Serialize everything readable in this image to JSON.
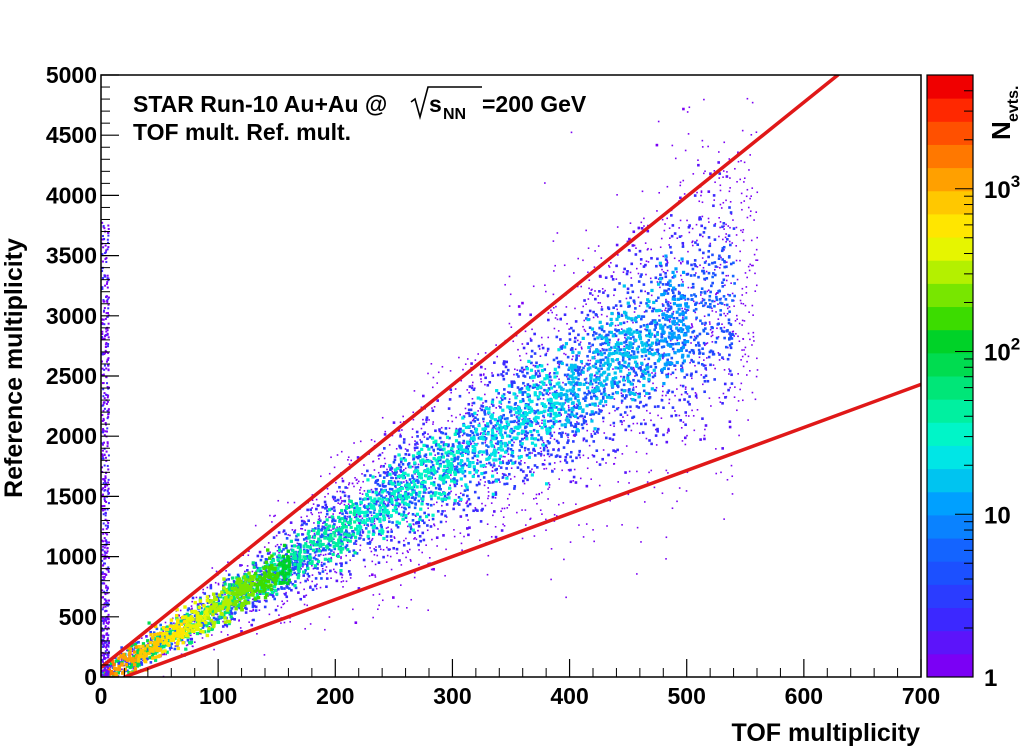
{
  "chart_data": {
    "type": "heatmap",
    "title_line1_prefix": "STAR Run-10 Au+Au @",
    "title_line1_s": "s",
    "title_line1_sub": "NN",
    "title_line1_suffix": "=200 GeV",
    "title_line2": "TOF mult. Ref. mult.",
    "xlabel": "TOF multiplicity",
    "ylabel": "Reference multiplicity",
    "xlim": [
      0,
      700
    ],
    "ylim": [
      0,
      5000
    ],
    "x_ticks": [
      0,
      100,
      200,
      300,
      400,
      500,
      600,
      700
    ],
    "x_tick_labels": [
      "0",
      "100",
      "200",
      "300",
      "400",
      "500",
      "600",
      "700"
    ],
    "y_ticks": [
      0,
      500,
      1000,
      1500,
      2000,
      2500,
      3000,
      3500,
      4000,
      4500,
      5000
    ],
    "y_tick_labels": [
      "0",
      "500",
      "1000",
      "1500",
      "2000",
      "2500",
      "3000",
      "3500",
      "4000",
      "4500",
      "5000"
    ],
    "colorbar": {
      "label_base": "N",
      "label_sub": "evts.",
      "scale": "log",
      "range": [
        1,
        5000
      ],
      "ticks": [
        {
          "value": 1,
          "base": "1",
          "exp": ""
        },
        {
          "value": 10,
          "base": "10",
          "exp": ""
        },
        {
          "value": 100,
          "base": "10",
          "exp": "2"
        },
        {
          "value": 1000,
          "base": "10",
          "exp": "3"
        }
      ],
      "colors": [
        "#7b00f5",
        "#5c14fa",
        "#3c28ff",
        "#2b3cff",
        "#1c50ff",
        "#1464ff",
        "#0a82ff",
        "#00a0ff",
        "#00c4f0",
        "#00e6e6",
        "#00f5c8",
        "#00f0a0",
        "#00e678",
        "#00dc50",
        "#00d228",
        "#3cdc00",
        "#78e600",
        "#b4f000",
        "#e6f500",
        "#ffe600",
        "#ffc800",
        "#ffa000",
        "#ff7800",
        "#ff5000",
        "#ff2800",
        "#f00000"
      ]
    },
    "cut_lines": [
      {
        "name": "upper cut",
        "x": [
          0,
          629
        ],
        "y": [
          80,
          5000
        ],
        "color": "#e01818"
      },
      {
        "name": "lower cut",
        "x": [
          20,
          700
        ],
        "y": [
          0,
          2430
        ],
        "color": "#e01818"
      }
    ]
  }
}
